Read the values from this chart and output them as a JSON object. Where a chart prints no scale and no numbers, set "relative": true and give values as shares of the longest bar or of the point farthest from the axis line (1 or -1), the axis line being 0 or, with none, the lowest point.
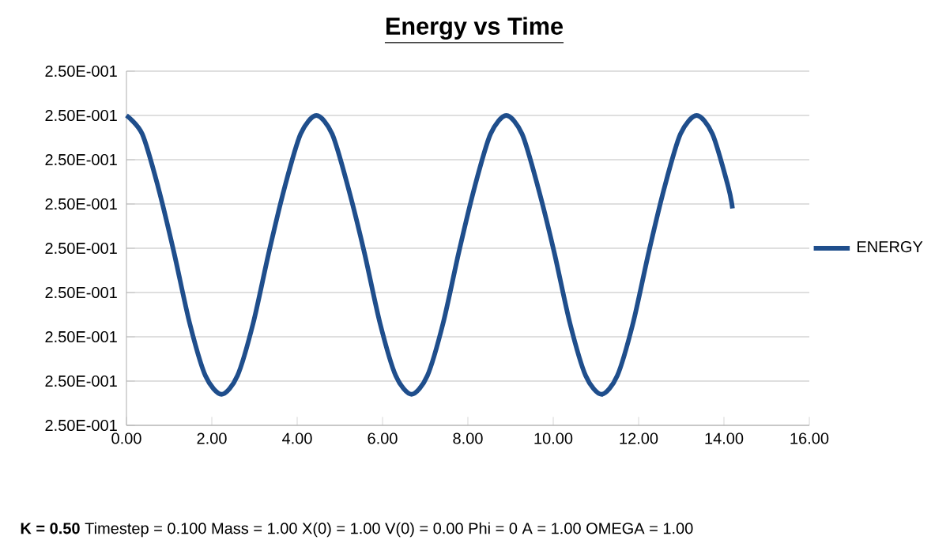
{
  "chart_data": {
    "type": "line",
    "title": "Energy vs Time",
    "relative": true,
    "x": [
      0,
      0.37,
      0.74,
      1.11,
      1.48,
      1.85,
      2.23,
      2.6,
      2.97,
      3.34,
      3.71,
      4.08,
      4.45,
      4.82,
      5.19,
      5.57,
      5.94,
      6.31,
      6.68,
      7.05,
      7.42,
      7.79,
      8.16,
      8.53,
      8.9,
      9.27,
      9.64,
      10.02,
      10.39,
      10.76,
      11.13,
      11.5,
      11.87,
      12.24,
      12.61,
      12.98,
      13.36,
      13.73,
      14.1,
      14.2
    ],
    "series": [
      {
        "name": "ENERGY",
        "color": "#1f4e8c",
        "values": [
          1,
          0.94,
          0.77,
          0.56,
          0.33,
          0.16,
          0.1,
          0.16,
          0.33,
          0.56,
          0.77,
          0.94,
          1,
          0.94,
          0.77,
          0.56,
          0.33,
          0.16,
          0.1,
          0.16,
          0.33,
          0.56,
          0.77,
          0.94,
          1,
          0.94,
          0.77,
          0.56,
          0.33,
          0.16,
          0.1,
          0.16,
          0.33,
          0.56,
          0.77,
          0.94,
          1,
          0.94,
          0.77,
          0.7
        ]
      }
    ],
    "xlim": [
      0,
      16
    ],
    "xticks": [
      {
        "value": 0,
        "label": "0.00"
      },
      {
        "value": 2,
        "label": "2.00"
      },
      {
        "value": 4,
        "label": "4.00"
      },
      {
        "value": 6,
        "label": "6.00"
      },
      {
        "value": 8,
        "label": "8.00"
      },
      {
        "value": 10,
        "label": "10.00"
      },
      {
        "value": 12,
        "label": "12.00"
      },
      {
        "value": 14,
        "label": "14.00"
      },
      {
        "value": 16,
        "label": "16.00"
      }
    ],
    "grid": "y",
    "legend": "right",
    "marker": "none",
    "line_style": "solid",
    "annotations": [
      "2.50E-001",
      "2.50E-001",
      "2.50E-001",
      "2.50E-001",
      "2.50E-001",
      "2.50E-001",
      "2.50E-001",
      "2.50E-001",
      "2.50E-001",
      "**K = 0.50** Timestep = 0.100 Mass = 1.00 X(0) = 1.00 V(0) = 0.00 Phi = 0 A = 1.00 OMEGA = 1.00"
    ]
  }
}
